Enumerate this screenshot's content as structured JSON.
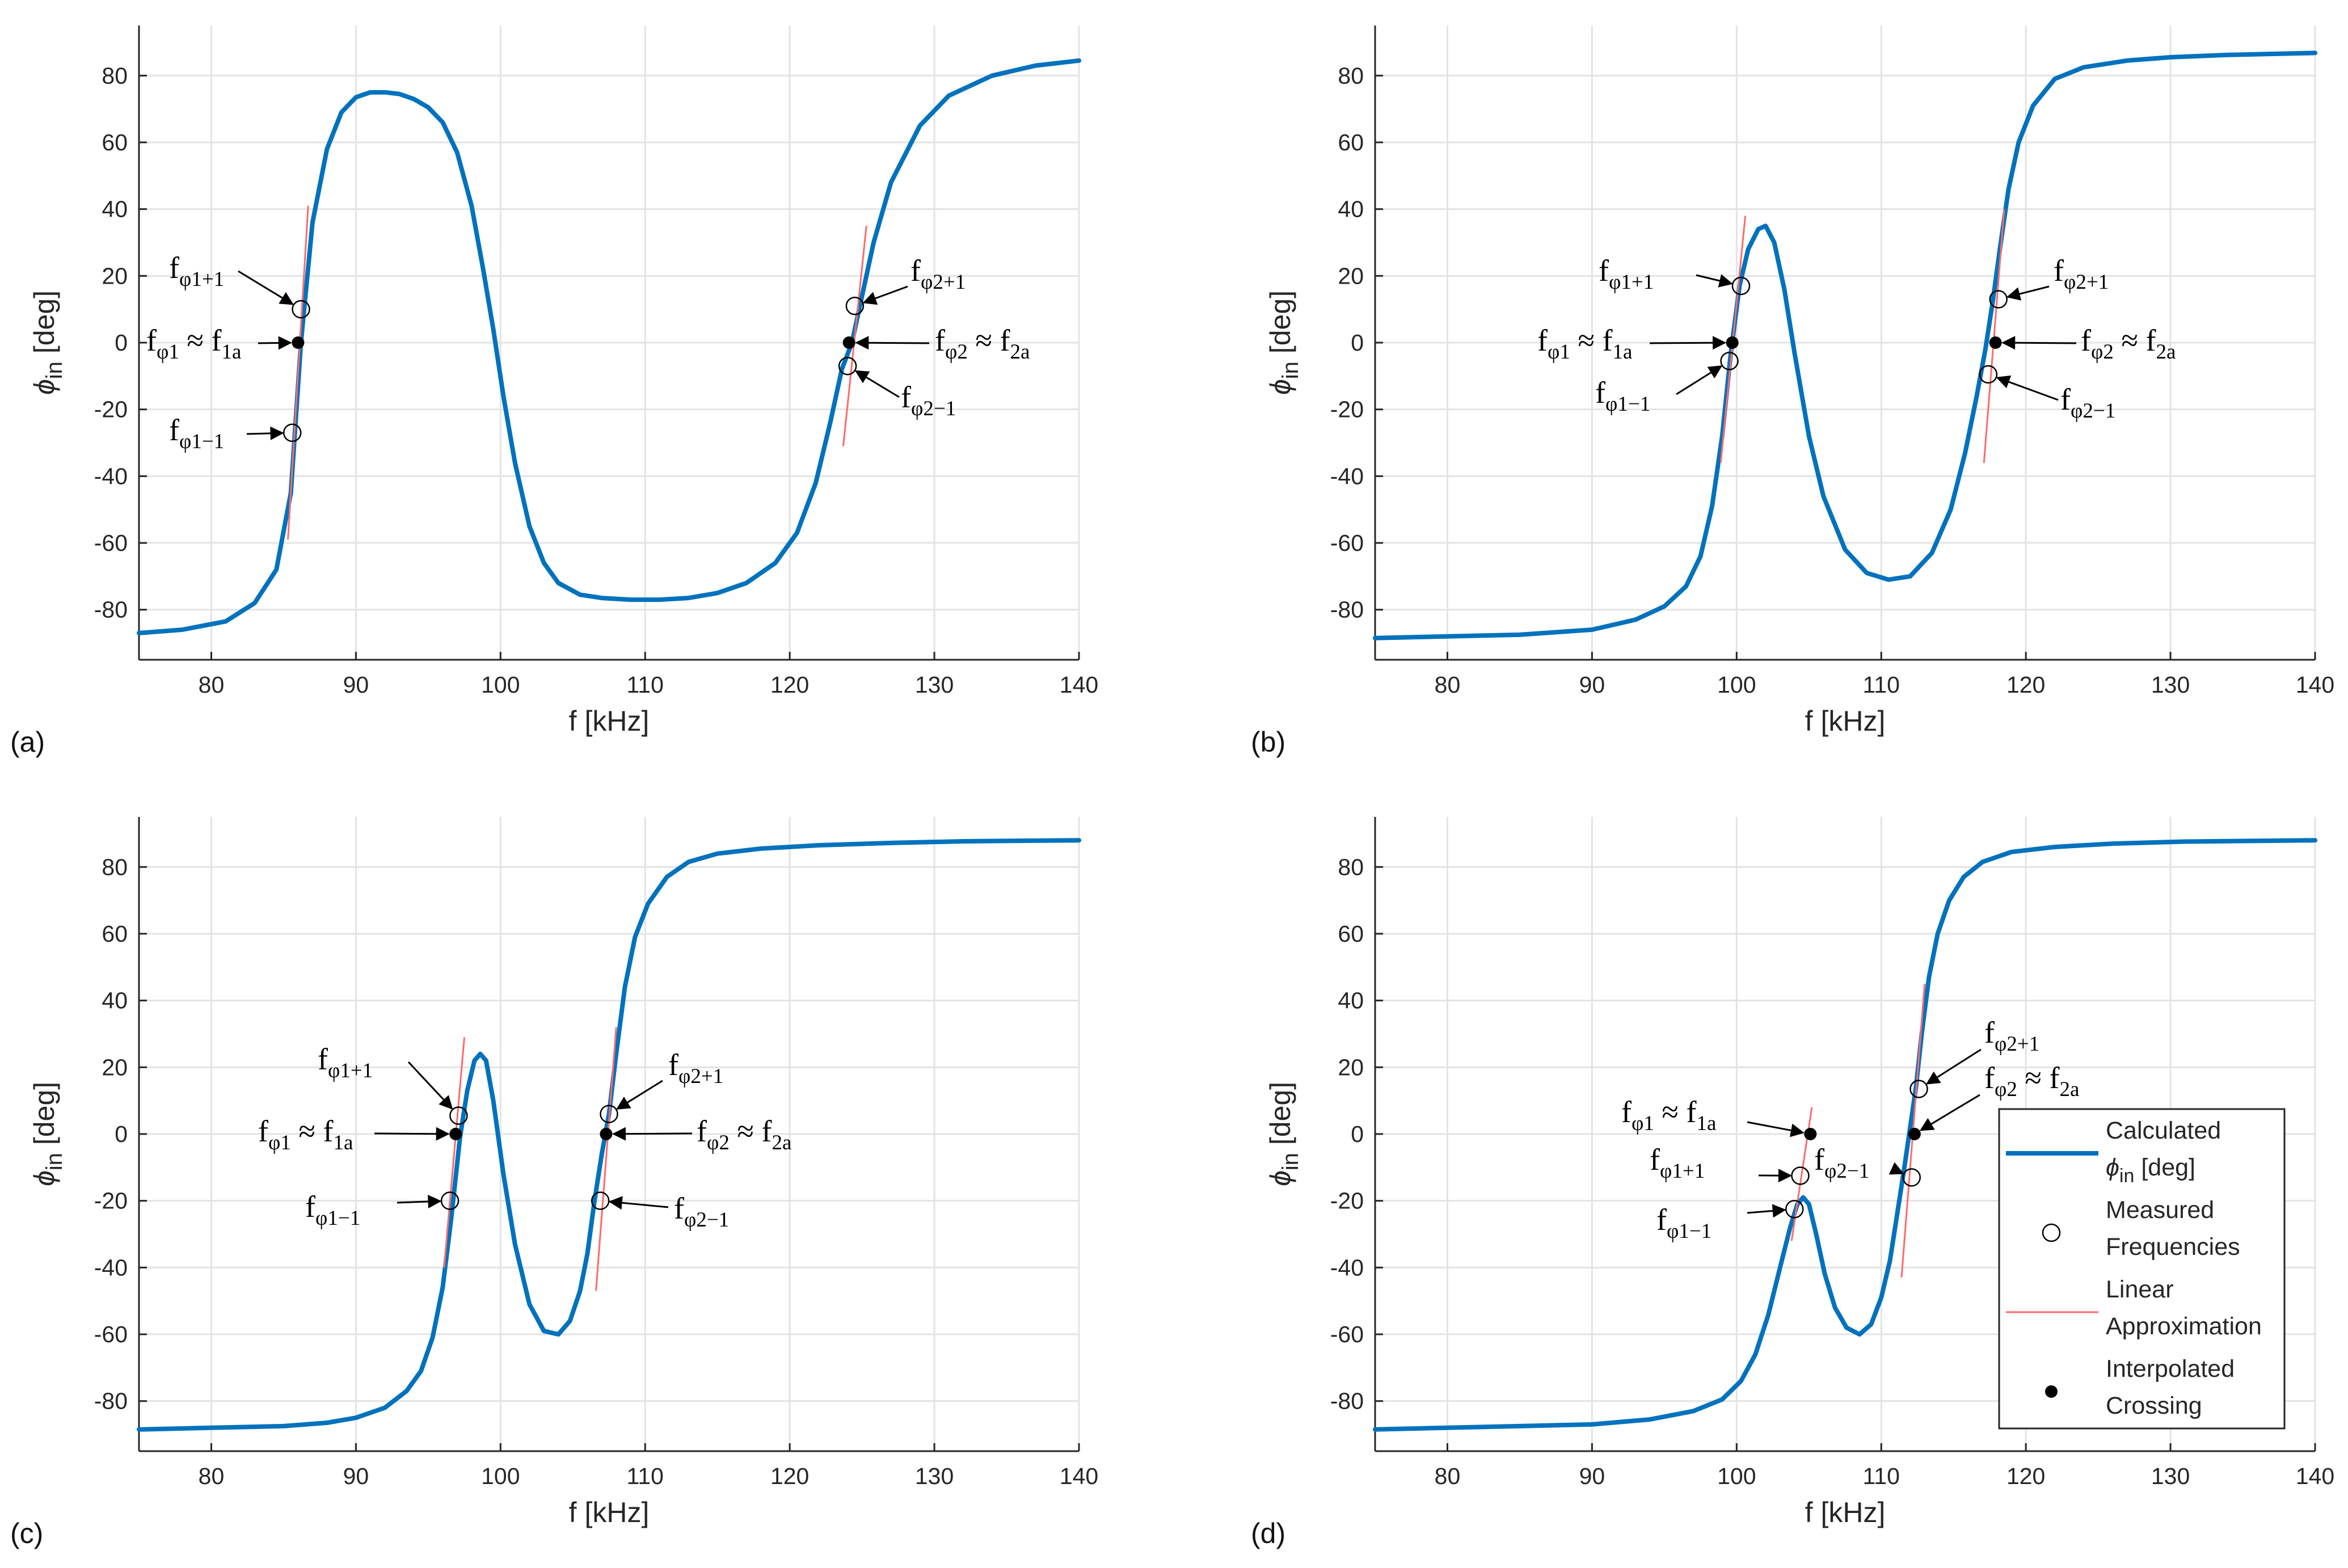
{
  "figure": {
    "colors": {
      "curve": "#0072BD",
      "linear": "#FF6A6A",
      "marker": "#000000",
      "grid": "#E3E3E3",
      "axis": "#262626"
    }
  },
  "chart_data": [
    {
      "type": "line",
      "panel_label": "(a)",
      "xlabel": "f [kHz]",
      "ylabel": "ϕ",
      "ylabel_sub": "in",
      "ylabel_unit": " [deg]",
      "xlim": [
        75,
        140
      ],
      "ylim": [
        -95,
        95
      ],
      "xticks": [
        80,
        90,
        100,
        110,
        120,
        130,
        140
      ],
      "yticks": [
        -80,
        -60,
        -40,
        -20,
        0,
        20,
        40,
        60,
        80
      ],
      "series": [
        {
          "name": "Calculated ϕin [deg]",
          "x": [
            75,
            78,
            81,
            83,
            84.5,
            85.5,
            86.2,
            87,
            88,
            89,
            90,
            91,
            92,
            93,
            94,
            95,
            96,
            97,
            98,
            98.8,
            99.5,
            100.2,
            101,
            102,
            103,
            104,
            105.5,
            107,
            109,
            111,
            113,
            115,
            117,
            119,
            120.5,
            121.8,
            122.8,
            123.6,
            124.3,
            125,
            125.8,
            127,
            129,
            131,
            134,
            137,
            140
          ],
          "y": [
            -87,
            -86,
            -83.5,
            -78,
            -68,
            -45,
            0,
            36,
            58,
            69,
            73.5,
            75,
            75,
            74.5,
            73,
            70.5,
            66,
            57,
            41,
            22,
            4,
            -16,
            -36,
            -55,
            -66,
            -72,
            -75.5,
            -76.5,
            -77,
            -77,
            -76.5,
            -75,
            -72,
            -66,
            -57,
            -42,
            -24,
            -8,
            0,
            14,
            30,
            48,
            65,
            74,
            80,
            83,
            84.5
          ]
        },
        {
          "name": "Linear Approximation",
          "segments": [
            {
              "x": [
                85.3,
                86.7
              ],
              "y": [
                -59,
                41
              ]
            },
            {
              "x": [
                123.7,
                125.3
              ],
              "y": [
                -31,
                35
              ]
            }
          ]
        }
      ],
      "measured": [
        {
          "x": 86.2,
          "y": 10
        },
        {
          "x": 85.6,
          "y": -27
        },
        {
          "x": 124.5,
          "y": 11
        },
        {
          "x": 124.0,
          "y": -7
        }
      ],
      "crossings": [
        {
          "x": 86.0,
          "y": 0
        },
        {
          "x": 124.1,
          "y": 0
        }
      ],
      "annotations": [
        {
          "id": "p1",
          "base": "f",
          "sub": "φ1+1",
          "tail": ""
        },
        {
          "id": "c1",
          "base": "f",
          "sub": "φ1",
          "tail": " ≈ f",
          "sub2": "1a"
        },
        {
          "id": "m1",
          "base": "f",
          "sub": "φ1−1",
          "tail": ""
        },
        {
          "id": "p2",
          "base": "f",
          "sub": "φ2+1",
          "tail": ""
        },
        {
          "id": "c2",
          "base": "f",
          "sub": "φ2",
          "tail": " ≈ f",
          "sub2": "2a"
        },
        {
          "id": "m2",
          "base": "f",
          "sub": "φ2−1",
          "tail": ""
        }
      ]
    },
    {
      "type": "line",
      "panel_label": "(b)",
      "xlabel": "f [kHz]",
      "ylabel": "ϕ",
      "ylabel_sub": "in",
      "ylabel_unit": " [deg]",
      "xlim": [
        75,
        140
      ],
      "ylim": [
        -95,
        95
      ],
      "xticks": [
        80,
        90,
        100,
        110,
        120,
        130,
        140
      ],
      "yticks": [
        -80,
        -60,
        -40,
        -20,
        0,
        20,
        40,
        60,
        80
      ],
      "series": [
        {
          "name": "Calculated ϕin [deg]",
          "x": [
            75,
            80,
            85,
            90,
            93,
            95,
            96.5,
            97.5,
            98.3,
            99,
            99.6,
            100.2,
            100.8,
            101.5,
            102,
            102.6,
            103.3,
            104,
            105,
            106,
            107.5,
            109,
            110.5,
            112,
            113.5,
            114.8,
            115.8,
            116.6,
            117.2,
            117.7,
            118.2,
            118.8,
            119.5,
            120.5,
            122,
            124,
            127,
            130,
            134,
            140
          ],
          "y": [
            -88.5,
            -88,
            -87.5,
            -86,
            -83,
            -79,
            -73,
            -64,
            -49,
            -28,
            -3,
            17,
            28,
            34,
            35,
            30,
            16,
            -3,
            -28,
            -46,
            -62,
            -69,
            -71,
            -70,
            -63,
            -50,
            -33,
            -16,
            -2,
            12,
            28,
            46,
            60,
            71,
            79,
            82.5,
            84.5,
            85.5,
            86.2,
            86.8
          ]
        },
        {
          "name": "Linear Approximation",
          "segments": [
            {
              "x": [
                98.9,
                100.6
              ],
              "y": [
                -36,
                38
              ]
            },
            {
              "x": [
                117.1,
                118.5
              ],
              "y": [
                -36,
                40
              ]
            }
          ]
        }
      ],
      "measured": [
        {
          "x": 100.3,
          "y": 17
        },
        {
          "x": 99.5,
          "y": -5.5
        },
        {
          "x": 118.1,
          "y": 13
        },
        {
          "x": 117.4,
          "y": -9.5
        }
      ],
      "crossings": [
        {
          "x": 99.7,
          "y": 0
        },
        {
          "x": 117.9,
          "y": 0
        }
      ],
      "annotations": [
        {
          "id": "p1",
          "base": "f",
          "sub": "φ1+1",
          "tail": ""
        },
        {
          "id": "c1",
          "base": "f",
          "sub": "φ1",
          "tail": " ≈ f",
          "sub2": "1a"
        },
        {
          "id": "m1",
          "base": "f",
          "sub": "φ1−1",
          "tail": ""
        },
        {
          "id": "p2",
          "base": "f",
          "sub": "φ2+1",
          "tail": ""
        },
        {
          "id": "c2",
          "base": "f",
          "sub": "φ2",
          "tail": " ≈ f",
          "sub2": "2a"
        },
        {
          "id": "m2",
          "base": "f",
          "sub": "φ2−1",
          "tail": ""
        }
      ]
    },
    {
      "type": "line",
      "panel_label": "(c)",
      "xlabel": "f [kHz]",
      "ylabel": "ϕ",
      "ylabel_sub": "in",
      "ylabel_unit": " [deg]",
      "xlim": [
        75,
        140
      ],
      "ylim": [
        -95,
        95
      ],
      "xticks": [
        80,
        90,
        100,
        110,
        120,
        130,
        140
      ],
      "yticks": [
        -80,
        -60,
        -40,
        -20,
        0,
        20,
        40,
        60,
        80
      ],
      "series": [
        {
          "name": "Calculated ϕin [deg]",
          "x": [
            75,
            80,
            85,
            88,
            90,
            92,
            93.5,
            94.5,
            95.3,
            96,
            96.6,
            97.2,
            97.7,
            98.2,
            98.6,
            99,
            99.5,
            100.2,
            101,
            102,
            103,
            104,
            104.8,
            105.5,
            106,
            106.5,
            107,
            107.5,
            108,
            108.6,
            109.3,
            110.2,
            111.5,
            113,
            115,
            118,
            122,
            127,
            132,
            140
          ],
          "y": [
            -88.5,
            -88,
            -87.5,
            -86.5,
            -85,
            -82,
            -77,
            -71,
            -61,
            -46,
            -25,
            -1,
            13,
            22,
            24,
            22,
            10,
            -12,
            -33,
            -51,
            -59,
            -60,
            -56,
            -47,
            -36,
            -20,
            -6,
            6,
            24,
            44,
            59,
            69,
            77,
            81.5,
            84,
            85.5,
            86.5,
            87.2,
            87.7,
            88
          ]
        },
        {
          "name": "Linear Approximation",
          "segments": [
            {
              "x": [
                96.1,
                97.5
              ],
              "y": [
                -40,
                29
              ]
            },
            {
              "x": [
                106.6,
                108.0
              ],
              "y": [
                -47,
                32
              ]
            }
          ]
        }
      ],
      "measured": [
        {
          "x": 97.1,
          "y": 5.5
        },
        {
          "x": 96.5,
          "y": -20
        },
        {
          "x": 107.5,
          "y": 6
        },
        {
          "x": 106.9,
          "y": -20
        }
      ],
      "crossings": [
        {
          "x": 96.9,
          "y": 0
        },
        {
          "x": 107.3,
          "y": 0
        }
      ],
      "annotations": [
        {
          "id": "p1",
          "base": "f",
          "sub": "φ1+1",
          "tail": ""
        },
        {
          "id": "c1",
          "base": "f",
          "sub": "φ1",
          "tail": " ≈ f",
          "sub2": "1a"
        },
        {
          "id": "m1",
          "base": "f",
          "sub": "φ1−1",
          "tail": ""
        },
        {
          "id": "p2",
          "base": "f",
          "sub": "φ2+1",
          "tail": ""
        },
        {
          "id": "c2",
          "base": "f",
          "sub": "φ2",
          "tail": " ≈ f",
          "sub2": "2a"
        },
        {
          "id": "m2",
          "base": "f",
          "sub": "φ2−1",
          "tail": ""
        }
      ]
    },
    {
      "type": "line",
      "panel_label": "(d)",
      "xlabel": "f [kHz]",
      "ylabel": "ϕ",
      "ylabel_sub": "in",
      "ylabel_unit": " [deg]",
      "xlim": [
        75,
        140
      ],
      "ylim": [
        -95,
        95
      ],
      "xticks": [
        80,
        90,
        100,
        110,
        120,
        130,
        140
      ],
      "yticks": [
        -80,
        -60,
        -40,
        -20,
        0,
        20,
        40,
        60,
        80
      ],
      "series": [
        {
          "name": "Calculated ϕin [deg]",
          "x": [
            75,
            80,
            85,
            90,
            94,
            97,
            99,
            100.3,
            101.3,
            102.2,
            103,
            103.7,
            104.2,
            104.6,
            105,
            105.5,
            106.1,
            106.8,
            107.6,
            108.5,
            109.3,
            110,
            110.6,
            111.1,
            111.6,
            112,
            112.4,
            112.8,
            113.3,
            113.9,
            114.7,
            115.7,
            117,
            119,
            122,
            126,
            131,
            140
          ],
          "y": [
            -88.5,
            -88,
            -87.5,
            -87,
            -85.5,
            -83,
            -79.5,
            -74,
            -66,
            -54,
            -40,
            -28,
            -21,
            -19,
            -21,
            -30,
            -42,
            -52,
            -58,
            -60,
            -57,
            -49,
            -38,
            -24,
            -10,
            2,
            14,
            30,
            47,
            60,
            70,
            77,
            81.5,
            84.5,
            86,
            87,
            87.6,
            88
          ]
        },
        {
          "name": "Linear Approximation",
          "segments": [
            {
              "x": [
                103.8,
                105.2
              ],
              "y": [
                -32,
                8
              ]
            },
            {
              "x": [
                111.4,
                113.0
              ],
              "y": [
                -43,
                45
              ]
            }
          ]
        }
      ],
      "measured": [
        {
          "x": 104.4,
          "y": -12.5
        },
        {
          "x": 104.0,
          "y": -22.5
        },
        {
          "x": 112.6,
          "y": 13.5
        },
        {
          "x": 112.1,
          "y": -13
        }
      ],
      "crossings": [
        {
          "x": 105.1,
          "y": 0
        },
        {
          "x": 112.3,
          "y": 0
        }
      ],
      "annotations": [
        {
          "id": "c1",
          "base": "f",
          "sub": "φ1",
          "tail": " ≈ f",
          "sub2": "1a"
        },
        {
          "id": "p1",
          "base": "f",
          "sub": "φ1+1",
          "tail": ""
        },
        {
          "id": "m1",
          "base": "f",
          "sub": "φ1−1",
          "tail": ""
        },
        {
          "id": "p2",
          "base": "f",
          "sub": "φ2+1",
          "tail": ""
        },
        {
          "id": "c2",
          "base": "f",
          "sub": "φ2",
          "tail": " ≈ f",
          "sub2": "2a"
        },
        {
          "id": "m2",
          "base": "f",
          "sub": "φ2−1",
          "tail": ""
        }
      ],
      "legend": {
        "position": "lower-right",
        "entries": [
          {
            "kind": "line",
            "lines": [
              "Calculated",
              "ϕin [deg]"
            ]
          },
          {
            "kind": "circle",
            "lines": [
              "Measured",
              "Frequencies"
            ]
          },
          {
            "kind": "thin-line",
            "lines": [
              "Linear",
              "Approximation"
            ]
          },
          {
            "kind": "dot",
            "lines": [
              "Interpolated",
              "Crossing"
            ]
          }
        ]
      }
    }
  ]
}
